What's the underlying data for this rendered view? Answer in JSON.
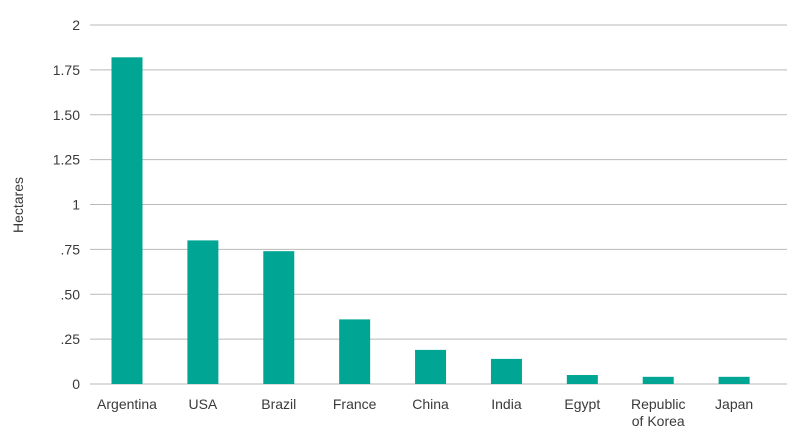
{
  "chart_data": {
    "type": "bar",
    "title": "",
    "xlabel": "",
    "ylabel": "Hectares",
    "categories": [
      "Argentina",
      "USA",
      "Brazil",
      "France",
      "China",
      "India",
      "Egypt",
      [
        "Republic",
        "of Korea"
      ],
      "Japan"
    ],
    "values": [
      1.82,
      0.8,
      0.74,
      0.36,
      0.19,
      0.14,
      0.05,
      0.04,
      0.04
    ],
    "ylim": [
      0,
      2
    ],
    "yticks": [
      {
        "value": 0,
        "label": "0"
      },
      {
        "value": 0.25,
        "label": ".25"
      },
      {
        "value": 0.5,
        "label": ".50"
      },
      {
        "value": 0.75,
        "label": ".75"
      },
      {
        "value": 1,
        "label": "1"
      },
      {
        "value": 1.25,
        "label": "1.25"
      },
      {
        "value": 1.5,
        "label": "1.50"
      },
      {
        "value": 1.75,
        "label": "1.75"
      },
      {
        "value": 2,
        "label": "2"
      }
    ],
    "grid": true,
    "bar_color": "#00a693",
    "grid_color": "#b9b9b9",
    "text_color": "#3a3a3a"
  }
}
